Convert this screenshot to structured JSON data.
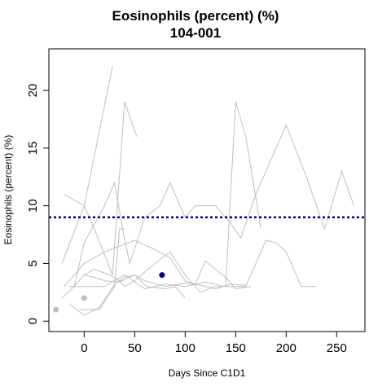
{
  "chart_data": {
    "type": "line",
    "title": "Eosinophils (percent) (%)",
    "subtitle": "104-001",
    "xlabel": "Days Since C1D1",
    "ylabel": "Eosinophils (percent) (%)",
    "xlim": [
      -35,
      278
    ],
    "ylim": [
      -0.9,
      23.6
    ],
    "xticks": [
      0,
      50,
      100,
      150,
      200,
      250
    ],
    "yticks": [
      0,
      5,
      10,
      15,
      20
    ],
    "grid": false,
    "reference_line": {
      "y": 9,
      "color": "#00008b",
      "style": "dotted"
    },
    "colors": {
      "series": "#bebebe",
      "highlight": "#00008b",
      "baseline_point": "#bebebe"
    },
    "series": [
      {
        "x": [
          -22,
          0,
          28
        ],
        "y": [
          5,
          10,
          22.1
        ]
      },
      {
        "x": [
          -20,
          0,
          10,
          28,
          40,
          52
        ],
        "y": [
          11,
          10,
          8,
          4,
          19,
          16
        ]
      },
      {
        "x": [
          -20,
          0,
          20,
          50,
          70,
          85,
          100,
          110,
          120,
          140,
          150,
          165
        ],
        "y": [
          3,
          5,
          6,
          7,
          6.2,
          5.5,
          3.5,
          3.2,
          5.2,
          3.8,
          2.8,
          3
        ]
      },
      {
        "x": [
          -15,
          0,
          20,
          40,
          60,
          80,
          100,
          120,
          140,
          160,
          180,
          190,
          200,
          215,
          230
        ],
        "y": [
          3,
          3,
          3,
          4,
          2.8,
          3.2,
          3,
          3.4,
          3,
          3,
          7,
          6.8,
          6,
          3,
          3
        ]
      },
      {
        "x": [
          -22,
          -10,
          0,
          10,
          20,
          35,
          50,
          62,
          80,
          90,
          100
        ],
        "y": [
          2,
          3,
          4,
          3.8,
          3.5,
          3.4,
          4,
          3,
          2.8,
          3,
          2
        ]
      },
      {
        "x": [
          -15,
          0,
          15,
          30,
          40,
          50,
          60,
          80,
          100,
          115,
          130,
          145,
          160
        ],
        "y": [
          1.5,
          0.5,
          1.2,
          3.2,
          3.8,
          4,
          3.5,
          3,
          3.3,
          3.1,
          2.8,
          3.2,
          3.1
        ]
      },
      {
        "x": [
          -10,
          0,
          20,
          30,
          38,
          45,
          60,
          75,
          85,
          100,
          110,
          130,
          145,
          155,
          170,
          190,
          200,
          220,
          238,
          255,
          267
        ],
        "y": [
          3,
          6.8,
          10,
          12,
          8,
          5,
          9,
          10,
          12,
          9,
          10,
          10,
          8.5,
          7.2,
          11,
          15,
          17,
          12.5,
          8,
          13,
          10
        ]
      },
      {
        "x": [
          0,
          10,
          25,
          35,
          40,
          50,
          70,
          85,
          100,
          115,
          130,
          140,
          150,
          160,
          175
        ],
        "y": [
          4,
          4.5,
          4,
          3.5,
          3,
          3.5,
          5,
          6,
          4,
          2.5,
          3,
          3,
          19,
          16,
          8
        ]
      },
      {
        "x": [
          -5,
          15,
          30,
          35,
          40
        ],
        "y": [
          1,
          1,
          3,
          8,
          8
        ]
      }
    ],
    "points": [
      {
        "x": -28,
        "y": 1,
        "color": "baseline_point"
      },
      {
        "x": 0,
        "y": 2,
        "color": "baseline_point"
      },
      {
        "x": 77,
        "y": 4,
        "color": "highlight"
      }
    ]
  }
}
